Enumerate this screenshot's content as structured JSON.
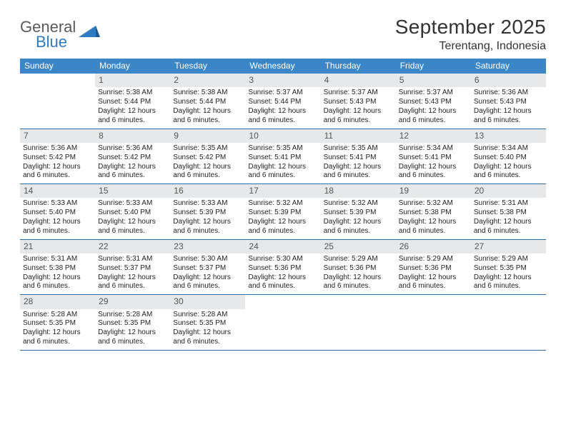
{
  "brand": {
    "word1": "General",
    "word2": "Blue"
  },
  "title": "September 2025",
  "location": "Terentang, Indonesia",
  "colors": {
    "header_bg": "#3b86c6",
    "header_text": "#ffffff",
    "row_border": "#2f6ea8",
    "daynum_bg": "#e7e8e9",
    "daynum_text": "#555555",
    "body_text": "#222222",
    "title_text": "#333333",
    "logo_gray": "#5a5a5a",
    "logo_blue": "#2f7bbf"
  },
  "weekdays": [
    "Sunday",
    "Monday",
    "Tuesday",
    "Wednesday",
    "Thursday",
    "Friday",
    "Saturday"
  ],
  "first_weekday_index": 1,
  "days_in_month": 30,
  "labels": {
    "sunrise": "Sunrise:",
    "sunset": "Sunset:",
    "daylight": "Daylight:"
  },
  "days": {
    "1": {
      "sunrise": "5:38 AM",
      "sunset": "5:44 PM",
      "daylight": "12 hours and 6 minutes."
    },
    "2": {
      "sunrise": "5:38 AM",
      "sunset": "5:44 PM",
      "daylight": "12 hours and 6 minutes."
    },
    "3": {
      "sunrise": "5:37 AM",
      "sunset": "5:44 PM",
      "daylight": "12 hours and 6 minutes."
    },
    "4": {
      "sunrise": "5:37 AM",
      "sunset": "5:43 PM",
      "daylight": "12 hours and 6 minutes."
    },
    "5": {
      "sunrise": "5:37 AM",
      "sunset": "5:43 PM",
      "daylight": "12 hours and 6 minutes."
    },
    "6": {
      "sunrise": "5:36 AM",
      "sunset": "5:43 PM",
      "daylight": "12 hours and 6 minutes."
    },
    "7": {
      "sunrise": "5:36 AM",
      "sunset": "5:42 PM",
      "daylight": "12 hours and 6 minutes."
    },
    "8": {
      "sunrise": "5:36 AM",
      "sunset": "5:42 PM",
      "daylight": "12 hours and 6 minutes."
    },
    "9": {
      "sunrise": "5:35 AM",
      "sunset": "5:42 PM",
      "daylight": "12 hours and 6 minutes."
    },
    "10": {
      "sunrise": "5:35 AM",
      "sunset": "5:41 PM",
      "daylight": "12 hours and 6 minutes."
    },
    "11": {
      "sunrise": "5:35 AM",
      "sunset": "5:41 PM",
      "daylight": "12 hours and 6 minutes."
    },
    "12": {
      "sunrise": "5:34 AM",
      "sunset": "5:41 PM",
      "daylight": "12 hours and 6 minutes."
    },
    "13": {
      "sunrise": "5:34 AM",
      "sunset": "5:40 PM",
      "daylight": "12 hours and 6 minutes."
    },
    "14": {
      "sunrise": "5:33 AM",
      "sunset": "5:40 PM",
      "daylight": "12 hours and 6 minutes."
    },
    "15": {
      "sunrise": "5:33 AM",
      "sunset": "5:40 PM",
      "daylight": "12 hours and 6 minutes."
    },
    "16": {
      "sunrise": "5:33 AM",
      "sunset": "5:39 PM",
      "daylight": "12 hours and 6 minutes."
    },
    "17": {
      "sunrise": "5:32 AM",
      "sunset": "5:39 PM",
      "daylight": "12 hours and 6 minutes."
    },
    "18": {
      "sunrise": "5:32 AM",
      "sunset": "5:39 PM",
      "daylight": "12 hours and 6 minutes."
    },
    "19": {
      "sunrise": "5:32 AM",
      "sunset": "5:38 PM",
      "daylight": "12 hours and 6 minutes."
    },
    "20": {
      "sunrise": "5:31 AM",
      "sunset": "5:38 PM",
      "daylight": "12 hours and 6 minutes."
    },
    "21": {
      "sunrise": "5:31 AM",
      "sunset": "5:38 PM",
      "daylight": "12 hours and 6 minutes."
    },
    "22": {
      "sunrise": "5:31 AM",
      "sunset": "5:37 PM",
      "daylight": "12 hours and 6 minutes."
    },
    "23": {
      "sunrise": "5:30 AM",
      "sunset": "5:37 PM",
      "daylight": "12 hours and 6 minutes."
    },
    "24": {
      "sunrise": "5:30 AM",
      "sunset": "5:36 PM",
      "daylight": "12 hours and 6 minutes."
    },
    "25": {
      "sunrise": "5:29 AM",
      "sunset": "5:36 PM",
      "daylight": "12 hours and 6 minutes."
    },
    "26": {
      "sunrise": "5:29 AM",
      "sunset": "5:36 PM",
      "daylight": "12 hours and 6 minutes."
    },
    "27": {
      "sunrise": "5:29 AM",
      "sunset": "5:35 PM",
      "daylight": "12 hours and 6 minutes."
    },
    "28": {
      "sunrise": "5:28 AM",
      "sunset": "5:35 PM",
      "daylight": "12 hours and 6 minutes."
    },
    "29": {
      "sunrise": "5:28 AM",
      "sunset": "5:35 PM",
      "daylight": "12 hours and 6 minutes."
    },
    "30": {
      "sunrise": "5:28 AM",
      "sunset": "5:35 PM",
      "daylight": "12 hours and 6 minutes."
    }
  }
}
